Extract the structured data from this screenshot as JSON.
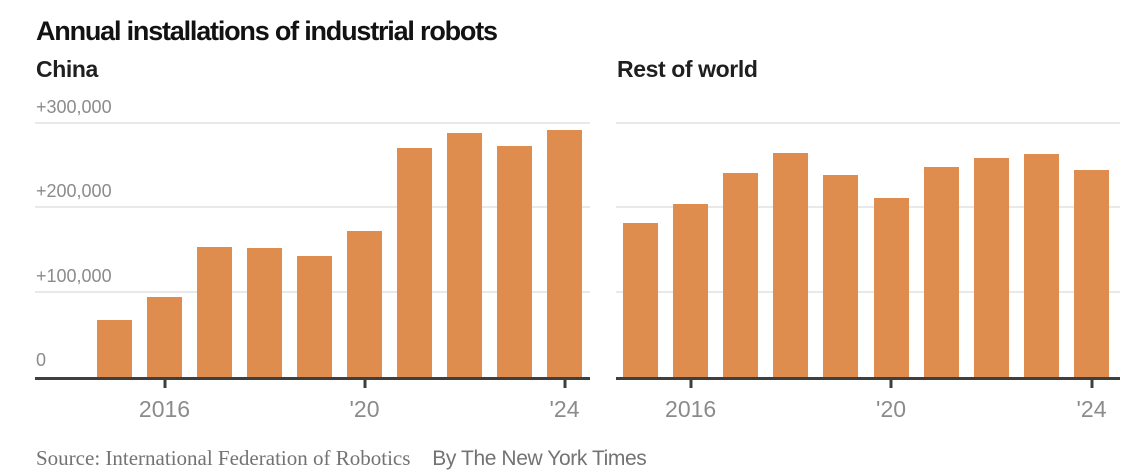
{
  "header": {
    "title": "Annual installations of industrial robots"
  },
  "chart_data": [
    {
      "type": "bar",
      "title": "China",
      "categories": [
        2015,
        2016,
        2017,
        2018,
        2019,
        2020,
        2021,
        2022,
        2023,
        2024
      ],
      "values": [
        68000,
        95000,
        154000,
        153000,
        144000,
        173000,
        272000,
        289000,
        274000,
        293000
      ],
      "ylim": [
        0,
        300000
      ],
      "grid": true,
      "show_y_tick_labels": true,
      "y_ticks": [
        {
          "label": "0",
          "value": 0
        },
        {
          "label": "+100,000",
          "value": 100000
        },
        {
          "label": "+200,000",
          "value": 200000
        },
        {
          "label": "+300,000",
          "value": 300000
        }
      ],
      "x_ticks": [
        {
          "label": "2016",
          "index": 1
        },
        {
          "label": "'20",
          "index": 5
        },
        {
          "label": "'24",
          "index": 9
        }
      ],
      "bar_color": "#DF8C4F"
    },
    {
      "type": "bar",
      "title": "Rest of world",
      "categories": [
        2015,
        2016,
        2017,
        2018,
        2019,
        2020,
        2021,
        2022,
        2023,
        2024
      ],
      "values": [
        183000,
        205000,
        242000,
        266000,
        239000,
        212000,
        249000,
        260000,
        265000,
        246000
      ],
      "ylim": [
        0,
        300000
      ],
      "grid": true,
      "show_y_tick_labels": false,
      "y_ticks": [
        {
          "label": "0",
          "value": 0
        },
        {
          "label": "+100,000",
          "value": 100000
        },
        {
          "label": "+200,000",
          "value": 200000
        },
        {
          "label": "+300,000",
          "value": 300000
        }
      ],
      "x_ticks": [
        {
          "label": "2016",
          "index": 1
        },
        {
          "label": "'20",
          "index": 5
        },
        {
          "label": "'24",
          "index": 9
        }
      ],
      "bar_color": "#DF8C4F"
    }
  ],
  "footer": {
    "source": "Source: International Federation of Robotics",
    "byline": "By The New York Times"
  },
  "colors": {
    "bar_orange": "#DF8C4F",
    "axis_label_gray": "#8b8b8b",
    "gridline_gray": "#e9e9e9",
    "axis_line_dark": "#3f3f3f",
    "title_black": "#121212",
    "footer_gray": "#737373"
  }
}
